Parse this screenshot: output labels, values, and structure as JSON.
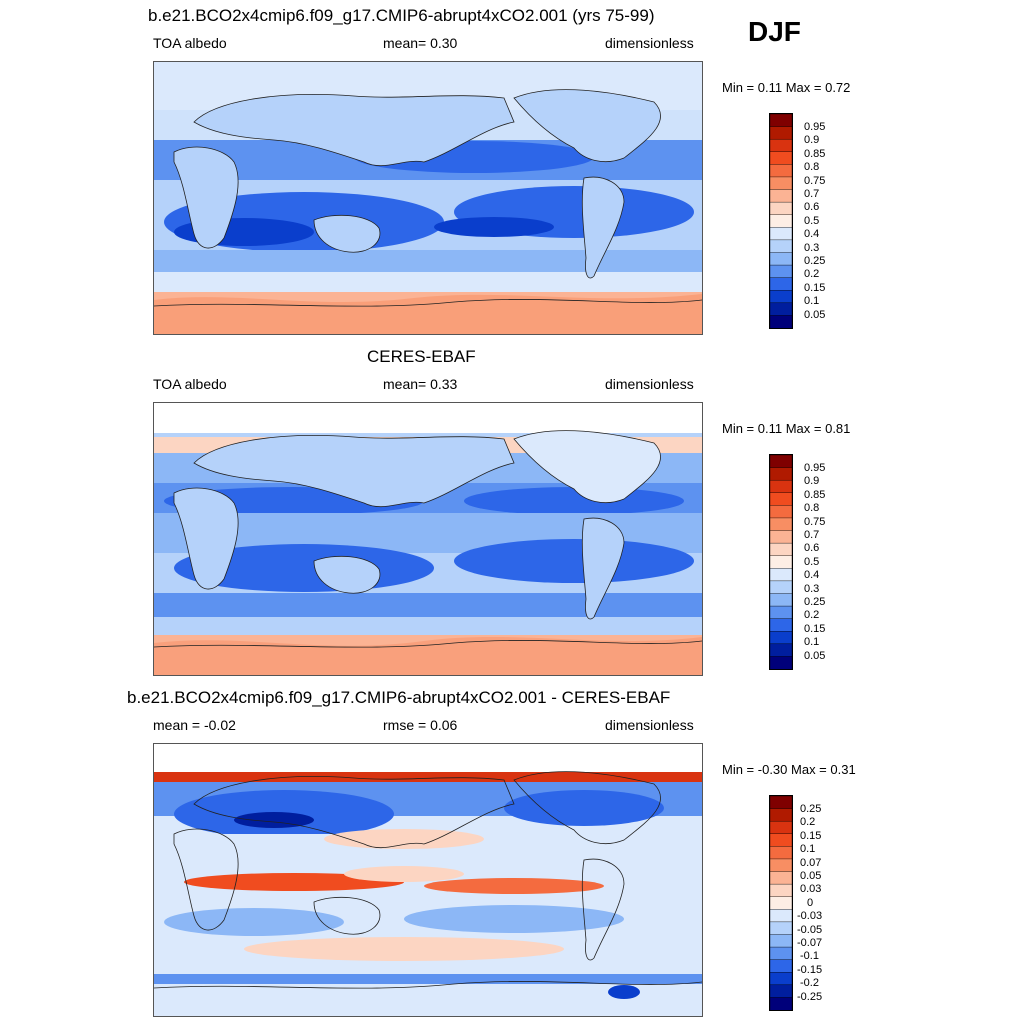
{
  "season": "DJF",
  "panels": [
    {
      "title": "b.e21.BCO2x4cmip6.f09_g17.CMIP6-abrupt4xCO2.001 (yrs 75-99)",
      "left_label": "TOA albedo",
      "center_label": "mean=   0.30",
      "right_label": "dimensionless",
      "minmax": "Min =   0.11 Max =   0.72",
      "levels": [
        "0.95",
        "0.9",
        "0.85",
        "0.8",
        "0.75",
        "0.7",
        "0.6",
        "0.5",
        "0.4",
        "0.3",
        "0.25",
        "0.2",
        "0.15",
        "0.1",
        "0.05"
      ],
      "colors": [
        "#7f0000",
        "#b01a00",
        "#d93310",
        "#f04c1f",
        "#f46b3f",
        "#f88e63",
        "#fbb394",
        "#fcd5c2",
        "#fdeee5",
        "#dbe9fc",
        "#b5d2fa",
        "#8cb7f6",
        "#5d92f0",
        "#2d66e8",
        "#0a3ecc",
        "#001e9e",
        "#00007a"
      ]
    },
    {
      "title": "CERES-EBAF",
      "left_label": "TOA albedo",
      "center_label": "mean=   0.33",
      "right_label": "dimensionless",
      "minmax": "Min =   0.11 Max =   0.81",
      "levels": [
        "0.95",
        "0.9",
        "0.85",
        "0.8",
        "0.75",
        "0.7",
        "0.6",
        "0.5",
        "0.4",
        "0.3",
        "0.25",
        "0.2",
        "0.15",
        "0.1",
        "0.05"
      ],
      "colors": [
        "#7f0000",
        "#b01a00",
        "#d93310",
        "#f04c1f",
        "#f46b3f",
        "#f88e63",
        "#fbb394",
        "#fcd5c2",
        "#fdeee5",
        "#dbe9fc",
        "#b5d2fa",
        "#8cb7f6",
        "#5d92f0",
        "#2d66e8",
        "#0a3ecc",
        "#001e9e",
        "#00007a"
      ]
    },
    {
      "title": "b.e21.BCO2x4cmip6.f09_g17.CMIP6-abrupt4xCO2.001 - CERES-EBAF",
      "left_label": "mean =  -0.02",
      "center_label": "rmse =   0.06",
      "right_label": "dimensionless",
      "minmax": "Min =  -0.30 Max =   0.31",
      "levels": [
        "0.25",
        "0.2",
        "0.15",
        "0.1",
        "0.07",
        "0.05",
        "0.03",
        "0",
        "-0.03",
        "-0.05",
        "-0.07",
        "-0.1",
        "-0.15",
        "-0.2",
        "-0.25"
      ],
      "colors": [
        "#7f0000",
        "#b01a00",
        "#d93310",
        "#f04c1f",
        "#f46b3f",
        "#f88e63",
        "#fbb394",
        "#fcd5c2",
        "#fdeee5",
        "#dbe9fc",
        "#b5d2fa",
        "#8cb7f6",
        "#5d92f0",
        "#2d66e8",
        "#0a3ecc",
        "#001e9e",
        "#00007a"
      ]
    }
  ]
}
